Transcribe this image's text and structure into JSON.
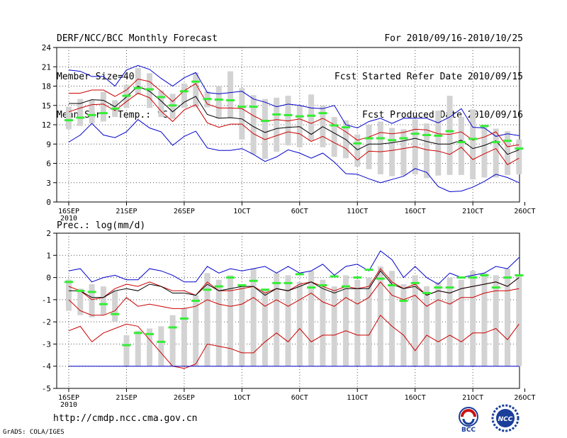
{
  "header": {
    "title": "DERF/NCC/BCC Monthly Forecast",
    "member_size": "Member Size=40",
    "variable_label": "Mean Surf. Temp.: °C",
    "period": "For 2010/09/16-2010/10/25",
    "start_date": "Fcst Started Refer Date 2010/09/15",
    "produced_date": "Fcst Produced Date 2010/09/16"
  },
  "footer": {
    "url": "http://cmdp.ncc.cma.gov.cn",
    "grads": "GrADS: COLA/IGES",
    "logo_left_text": "BCC",
    "logo_right_text": "NCC"
  },
  "colors": {
    "minmax": "#0000cc",
    "spread": "#cc0000",
    "mean": "#000000",
    "box": "#d3d3d3",
    "marker": "#33ee33",
    "grid": "#555555"
  },
  "chart_data": [
    {
      "type": "line",
      "title": "Mean Surf. Temp.: °C",
      "ylabel": "°C",
      "ylim": [
        0,
        24
      ],
      "yticks": [
        0,
        3,
        6,
        9,
        12,
        15,
        18,
        21,
        24
      ],
      "ytick_labels": [
        "0",
        "3",
        "6",
        "9",
        "12",
        "15",
        "18",
        "21",
        "24"
      ],
      "xticks": [
        {
          "day": 1,
          "label": "16SEP",
          "sublabel": "2010"
        },
        {
          "day": 6,
          "label": "21SEP"
        },
        {
          "day": 11,
          "label": "26SEP"
        },
        {
          "day": 16,
          "label": "1OCT"
        },
        {
          "day": 21,
          "label": "6OCT"
        },
        {
          "day": 26,
          "label": "11OCT"
        },
        {
          "day": 31,
          "label": "16OCT"
        },
        {
          "day": 36,
          "label": "21OCT"
        },
        {
          "day": 40.5,
          "label": "26OCT"
        }
      ],
      "x": [
        1,
        2,
        3,
        4,
        5,
        6,
        7,
        8,
        9,
        10,
        11,
        12,
        13,
        14,
        15,
        16,
        17,
        18,
        19,
        20,
        21,
        22,
        23,
        24,
        25,
        26,
        27,
        28,
        29,
        30,
        31,
        32,
        33,
        34,
        35,
        36,
        37,
        38,
        39,
        40
      ],
      "series": [
        {
          "name": "max",
          "values": [
            20.5,
            20.3,
            19.5,
            19.5,
            18.0,
            20.5,
            21.2,
            20.6,
            19.2,
            18.0,
            19.3,
            20.1,
            17.0,
            16.8,
            17.0,
            17.2,
            16.0,
            15.5,
            14.8,
            15.2,
            15.0,
            14.6,
            14.5,
            15.0,
            12.0,
            11.5,
            12.5,
            13.0,
            12.2,
            13.0,
            13.0,
            13.0,
            12.3,
            13.2,
            14.5,
            11.6,
            11.5,
            10.2,
            10.6,
            10.3
          ]
        },
        {
          "name": "upper",
          "values": [
            16.9,
            16.9,
            17.4,
            17.4,
            16.4,
            17.4,
            19.1,
            18.7,
            17.2,
            15.6,
            17.3,
            18.4,
            15.2,
            14.6,
            14.6,
            14.5,
            13.4,
            12.5,
            12.8,
            12.6,
            12.9,
            12.2,
            13.0,
            12.0,
            10.9,
            9.6,
            10.1,
            10.8,
            10.6,
            10.8,
            11.3,
            11.2,
            10.6,
            10.5,
            10.9,
            9.6,
            10.1,
            10.9,
            8.6,
            8.9
          ]
        },
        {
          "name": "mean",
          "values": [
            15.3,
            15.3,
            15.9,
            15.8,
            14.8,
            16.3,
            18.0,
            17.2,
            15.7,
            14.0,
            15.5,
            16.4,
            13.6,
            13.0,
            13.1,
            12.9,
            11.7,
            10.8,
            11.4,
            11.6,
            11.7,
            10.5,
            11.7,
            10.7,
            9.7,
            8.1,
            9.0,
            9.0,
            9.2,
            9.5,
            9.9,
            9.4,
            9.0,
            9.0,
            9.6,
            8.3,
            8.8,
            9.5,
            7.4,
            8.1
          ]
        },
        {
          "name": "lower",
          "values": [
            14.0,
            14.6,
            15.1,
            15.2,
            14.2,
            15.6,
            16.9,
            16.2,
            14.1,
            12.5,
            14.3,
            15.1,
            12.3,
            11.6,
            12.1,
            12.1,
            10.6,
            9.7,
            10.3,
            10.9,
            10.6,
            9.4,
            10.2,
            9.2,
            8.3,
            6.5,
            7.9,
            7.8,
            8.0,
            8.3,
            8.6,
            8.1,
            7.9,
            7.4,
            8.5,
            6.6,
            7.5,
            8.3,
            5.8,
            6.8
          ]
        },
        {
          "name": "min",
          "values": [
            9.3,
            10.4,
            12.2,
            10.4,
            10.0,
            10.9,
            12.8,
            11.5,
            10.9,
            8.8,
            10.2,
            11.0,
            8.4,
            8.0,
            8.0,
            8.3,
            7.4,
            6.3,
            7.0,
            8.1,
            7.6,
            6.8,
            7.6,
            6.2,
            4.4,
            4.3,
            3.6,
            3.0,
            3.5,
            4.0,
            5.2,
            4.6,
            2.4,
            1.6,
            1.7,
            2.3,
            3.2,
            4.3,
            3.8,
            3.0
          ]
        }
      ],
      "boxes": [
        {
          "low": 11.3,
          "high": 14.8
        },
        {
          "low": 11.8,
          "high": 16.0
        },
        {
          "low": 12.2,
          "high": 15.8
        },
        {
          "low": 12.5,
          "high": 17.1
        },
        {
          "low": 13.2,
          "high": 15.8
        },
        {
          "low": 14.6,
          "high": 18.2
        },
        {
          "low": 16.7,
          "high": 20.8
        },
        {
          "low": 14.6,
          "high": 20.0
        },
        {
          "low": 13.2,
          "high": 17.3
        },
        {
          "low": 12.9,
          "high": 16.8
        },
        {
          "low": 14.6,
          "high": 18.4
        },
        {
          "low": 14.7,
          "high": 20.1
        },
        {
          "low": 14.7,
          "high": 17.2
        },
        {
          "low": 13.0,
          "high": 18.0
        },
        {
          "low": 13.0,
          "high": 20.3
        },
        {
          "low": 9.7,
          "high": 17.7
        },
        {
          "low": 7.4,
          "high": 16.6
        },
        {
          "low": 6.7,
          "high": 16.0
        },
        {
          "low": 7.8,
          "high": 16.2
        },
        {
          "low": 8.8,
          "high": 16.5
        },
        {
          "low": 8.5,
          "high": 15.0
        },
        {
          "low": 9.5,
          "high": 16.7
        },
        {
          "low": 8.5,
          "high": 15.0
        },
        {
          "low": 7.0,
          "high": 13.2
        },
        {
          "low": 6.8,
          "high": 12.7
        },
        {
          "low": 5.5,
          "high": 10.5
        },
        {
          "low": 5.1,
          "high": 12.0
        },
        {
          "low": 4.3,
          "high": 12.5
        },
        {
          "low": 4.0,
          "high": 11.5
        },
        {
          "low": 4.1,
          "high": 11.3
        },
        {
          "low": 4.3,
          "high": 12.8
        },
        {
          "low": 3.7,
          "high": 12.2
        },
        {
          "low": 4.1,
          "high": 14.2
        },
        {
          "low": 4.2,
          "high": 16.5
        },
        {
          "low": 4.2,
          "high": 13.2
        },
        {
          "low": 3.5,
          "high": 14.4
        },
        {
          "low": 3.8,
          "high": 12.0
        },
        {
          "low": 3.8,
          "high": 11.4
        },
        {
          "low": 4.2,
          "high": 11.0
        },
        {
          "low": 4.3,
          "high": 9.7
        }
      ],
      "markers": [
        12.7,
        13.1,
        13.5,
        13.8,
        14.5,
        16.5,
        17.7,
        17.5,
        16.3,
        15.0,
        17.2,
        18.7,
        16.0,
        15.9,
        15.8,
        14.8,
        14.8,
        12.6,
        13.6,
        13.5,
        13.3,
        13.4,
        13.8,
        11.9,
        11.6,
        9.1,
        9.9,
        9.9,
        9.6,
        9.9,
        10.6,
        10.4,
        10.3,
        11.0,
        9.3,
        9.8,
        11.8,
        9.3,
        9.5,
        8.3
      ]
    },
    {
      "type": "line",
      "title": "Prec.: log(mm/d)",
      "ylabel": "log(mm/d)",
      "ylim": [
        -5,
        2
      ],
      "yticks": [
        -5,
        -4,
        -3,
        -2,
        -1,
        0,
        1,
        2
      ],
      "ytick_labels": [
        "-5",
        "-4",
        "-3",
        "-2",
        "-1",
        "0",
        "1",
        "2"
      ],
      "xticks": [
        {
          "day": 1,
          "label": "16SEP",
          "sublabel": "2010"
        },
        {
          "day": 6,
          "label": "21SEP"
        },
        {
          "day": 11,
          "label": "26SEP"
        },
        {
          "day": 16,
          "label": "1OCT"
        },
        {
          "day": 21,
          "label": "6OCT"
        },
        {
          "day": 26,
          "label": "11OCT"
        },
        {
          "day": 31,
          "label": "16OCT"
        },
        {
          "day": 36,
          "label": "21OCT"
        },
        {
          "day": 40.5,
          "label": "26OCT"
        }
      ],
      "x": [
        1,
        2,
        3,
        4,
        5,
        6,
        7,
        8,
        9,
        10,
        11,
        12,
        13,
        14,
        15,
        16,
        17,
        18,
        19,
        20,
        21,
        22,
        23,
        24,
        25,
        26,
        27,
        28,
        29,
        30,
        31,
        32,
        33,
        34,
        35,
        36,
        37,
        38,
        39,
        40
      ],
      "series": [
        {
          "name": "max",
          "values": [
            0.3,
            0.4,
            -0.2,
            0.0,
            0.1,
            -0.1,
            -0.1,
            0.4,
            0.3,
            0.1,
            -0.2,
            -0.2,
            0.5,
            0.2,
            0.4,
            0.3,
            0.4,
            0.5,
            0.2,
            0.5,
            0.2,
            0.3,
            0.6,
            0.1,
            0.5,
            0.6,
            0.3,
            1.2,
            0.8,
            0.0,
            0.5,
            0.0,
            -0.3,
            0.2,
            0.0,
            0.1,
            0.2,
            0.5,
            0.4,
            0.9
          ]
        },
        {
          "name": "upper",
          "values": [
            -0.4,
            -0.6,
            -1.0,
            -0.9,
            -0.5,
            -0.3,
            -0.4,
            -0.2,
            -0.4,
            -0.6,
            -0.6,
            -0.8,
            -0.2,
            -0.6,
            -0.6,
            -0.5,
            -0.4,
            -0.7,
            -0.5,
            -0.6,
            -0.3,
            -0.2,
            -0.4,
            -0.6,
            -0.4,
            -0.5,
            -0.4,
            0.4,
            -0.2,
            -0.5,
            -0.3,
            -0.8,
            -0.6,
            -0.7,
            -0.5,
            -0.4,
            -0.3,
            -0.2,
            -0.4,
            0.0
          ]
        },
        {
          "name": "mean",
          "values": [
            -0.6,
            -0.6,
            -0.9,
            -0.9,
            -0.6,
            -0.5,
            -0.6,
            -0.3,
            -0.4,
            -0.7,
            -0.7,
            -0.8,
            -0.3,
            -0.6,
            -0.5,
            -0.4,
            -0.4,
            -0.8,
            -0.5,
            -0.6,
            -0.4,
            -0.2,
            -0.5,
            -0.7,
            -0.5,
            -0.5,
            -0.5,
            0.3,
            -0.3,
            -0.5,
            -0.4,
            -0.8,
            -0.6,
            -0.7,
            -0.5,
            -0.4,
            -0.3,
            -0.2,
            -0.4,
            0.0
          ]
        },
        {
          "name": "lower",
          "values": [
            -1.0,
            -1.5,
            -1.7,
            -1.7,
            -1.5,
            -0.9,
            -1.3,
            -1.2,
            -1.3,
            -1.4,
            -1.4,
            -1.3,
            -1.0,
            -1.2,
            -1.3,
            -1.2,
            -0.9,
            -1.3,
            -1.0,
            -1.3,
            -1.0,
            -0.7,
            -1.1,
            -1.3,
            -0.9,
            -1.2,
            -0.9,
            -0.2,
            -0.8,
            -1.0,
            -0.8,
            -1.3,
            -1.0,
            -1.2,
            -0.9,
            -0.9,
            -0.7,
            -0.6,
            -0.6,
            -0.5
          ]
        },
        {
          "name": "lower2",
          "values": [
            -2.4,
            -2.2,
            -2.9,
            -2.5,
            -2.3,
            -2.1,
            -2.2,
            -2.8,
            -3.4,
            -4.0,
            -4.1,
            -3.9,
            -3.0,
            -3.1,
            -3.2,
            -3.4,
            -3.4,
            -2.9,
            -2.5,
            -2.9,
            -2.3,
            -2.9,
            -2.6,
            -2.6,
            -2.4,
            -2.6,
            -2.6,
            -1.7,
            -2.2,
            -2.6,
            -3.3,
            -2.6,
            -2.9,
            -2.6,
            -2.9,
            -2.5,
            -2.5,
            -2.3,
            -2.8,
            -2.1
          ]
        },
        {
          "name": "floor",
          "values": [
            -4.0,
            -4.0,
            -4.0,
            -4.0,
            -4.0,
            -4.0,
            -4.0,
            -4.0,
            -4.0,
            -4.0,
            -4.0,
            -4.0,
            -4.0,
            -4.0,
            -4.0,
            -4.0,
            -4.0,
            -4.0,
            -4.0,
            -4.0,
            -4.0,
            -4.0,
            -4.0,
            -4.0,
            -4.0,
            -4.0,
            -4.0,
            -4.0,
            -4.0,
            -4.0,
            -4.0,
            -4.0,
            -4.0,
            -4.0,
            -4.0,
            -4.0,
            -4.0,
            -4.0,
            -4.0,
            -4.0
          ]
        }
      ],
      "boxes": [
        {
          "low": -1.5,
          "high": -0.1
        },
        {
          "low": -1.7,
          "high": -0.5
        },
        {
          "low": -1.8,
          "high": -0.3
        },
        {
          "low": -1.7,
          "high": -0.4
        },
        {
          "low": -2.0,
          "high": -0.6
        },
        {
          "low": -4.0,
          "high": -2.6
        },
        {
          "low": -4.0,
          "high": -2.4
        },
        {
          "low": -4.0,
          "high": -2.3
        },
        {
          "low": -4.0,
          "high": -2.2
        },
        {
          "low": -4.0,
          "high": -1.7
        },
        {
          "low": -4.0,
          "high": -1.4
        },
        {
          "low": -4.0,
          "high": -0.8
        },
        {
          "low": -4.0,
          "high": 0.2
        },
        {
          "low": -4.0,
          "high": -0.1
        },
        {
          "low": -4.0,
          "high": 0.1
        },
        {
          "low": -4.0,
          "high": -0.3
        },
        {
          "low": -4.0,
          "high": 0.4
        },
        {
          "low": -4.0,
          "high": -0.5
        },
        {
          "low": -4.0,
          "high": 0.2
        },
        {
          "low": -4.0,
          "high": 0.1
        },
        {
          "low": -4.0,
          "high": -0.2
        },
        {
          "low": -4.0,
          "high": 0.3
        },
        {
          "low": -4.0,
          "high": -0.1
        },
        {
          "low": -4.0,
          "high": -0.4
        },
        {
          "low": -4.0,
          "high": 0.1
        },
        {
          "low": -4.0,
          "high": -0.1
        },
        {
          "low": -4.0,
          "high": 0.0
        },
        {
          "low": -4.0,
          "high": 0.5
        },
        {
          "low": -4.0,
          "high": 0.3
        },
        {
          "low": -4.0,
          "high": -0.3
        },
        {
          "low": -4.0,
          "high": 0.1
        },
        {
          "low": -4.0,
          "high": -0.4
        },
        {
          "low": -4.0,
          "high": -0.2
        },
        {
          "low": -4.0,
          "high": 0.0
        },
        {
          "low": -4.0,
          "high": -0.1
        },
        {
          "low": -4.0,
          "high": 0.3
        },
        {
          "low": -4.0,
          "high": 0.2
        },
        {
          "low": -4.0,
          "high": 0.1
        },
        {
          "low": -4.0,
          "high": 0.4
        },
        {
          "low": -4.0,
          "high": 0.1
        }
      ],
      "markers": [
        -0.2,
        -0.6,
        -0.65,
        -1.2,
        -1.65,
        -3.05,
        -2.5,
        -2.55,
        -2.9,
        -2.25,
        -1.85,
        -1.05,
        -0.55,
        -0.4,
        0.0,
        -0.35,
        -0.15,
        -0.55,
        -0.25,
        -0.25,
        0.15,
        -0.45,
        -0.35,
        0.05,
        -0.4,
        0.0,
        0.35,
        -0.05,
        -0.35,
        -1.05,
        -0.25,
        -0.7,
        -0.45,
        -0.45,
        0.0,
        0.0,
        0.1,
        -0.45,
        0.0,
        0.1
      ]
    }
  ]
}
